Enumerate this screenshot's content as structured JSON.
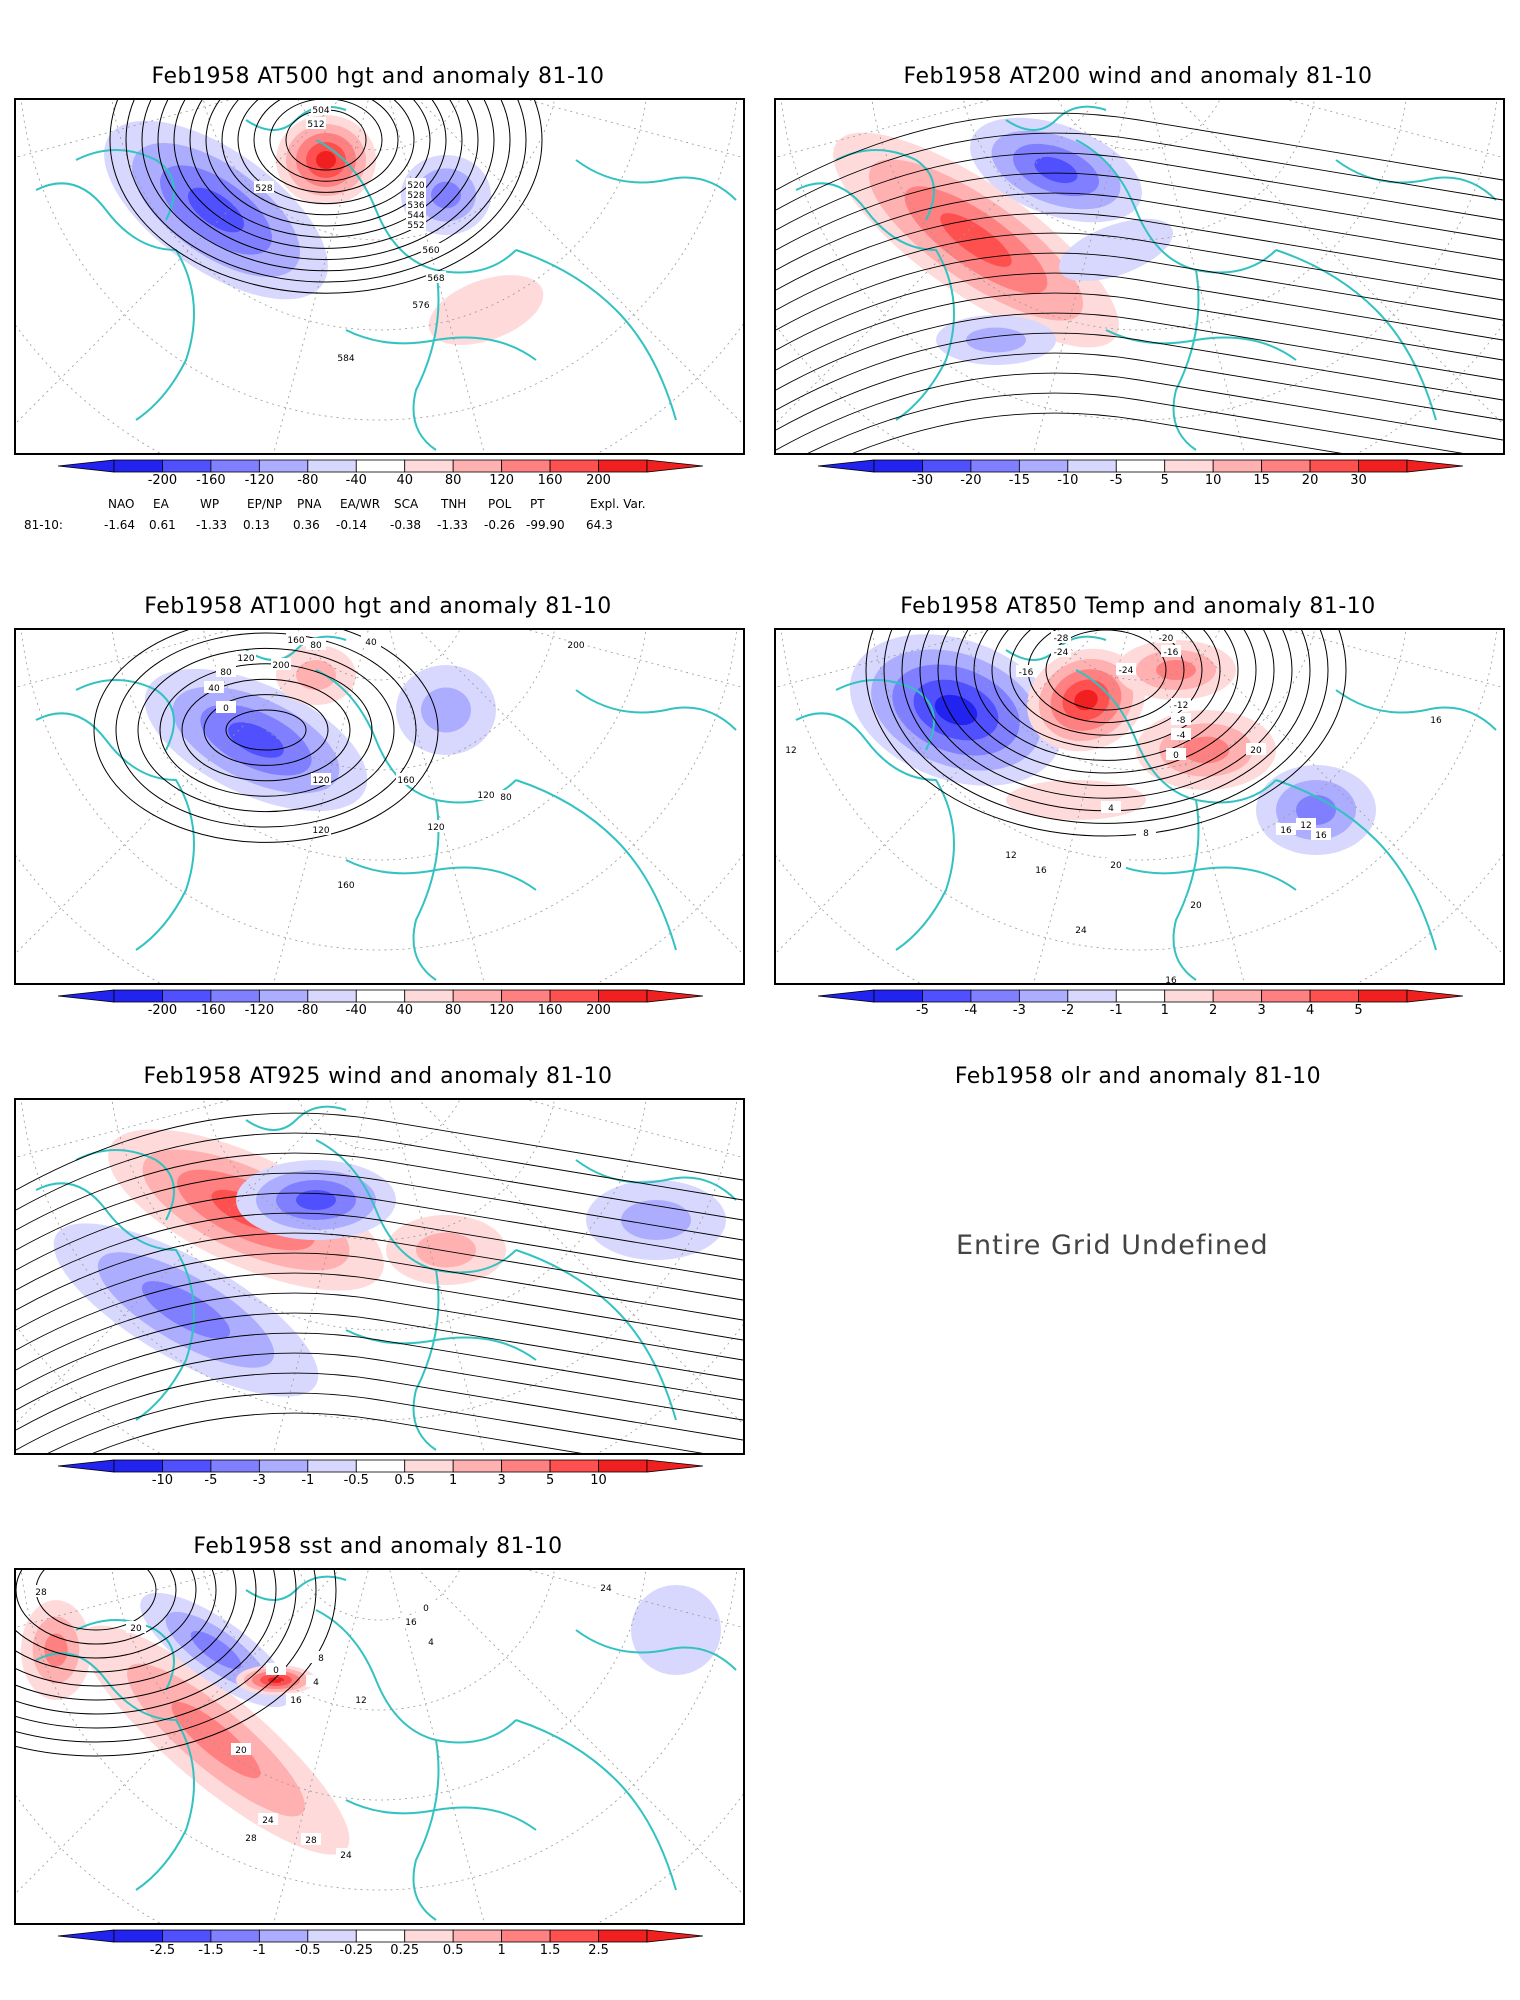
{
  "palette": {
    "blue5": "#2323f0",
    "blue4": "#5050ff",
    "blue3": "#7f7fff",
    "blue2": "#adadff",
    "blue1": "#d8d8ff",
    "red1": "#ffdada",
    "red2": "#ffb0b0",
    "red3": "#ff8080",
    "red4": "#ff5050",
    "red5": "#f02020",
    "land": "#33c2c2",
    "contour": "#000000"
  },
  "panels": [
    {
      "title": "Feb1958 AT500 hgt and anomaly 81-10",
      "colorbar": [
        "-200",
        "-160",
        "-120",
        "-80",
        "-40",
        "40",
        "80",
        "120",
        "160",
        "200"
      ],
      "contour_labels": [
        "504",
        "512",
        "520",
        "528",
        "536",
        "544",
        "552",
        "560",
        "568",
        "576",
        "584",
        "528"
      ],
      "teleconnections": {
        "headers": [
          "NAO",
          "EA",
          "WP",
          "EP/NP",
          "PNA",
          "EA/WR",
          "SCA",
          "TNH",
          "POL",
          "PT",
          "Expl. Var."
        ],
        "row_label": "81-10:",
        "values": [
          "-1.64",
          "0.61",
          "-1.33",
          "0.13",
          "0.36",
          "-0.14",
          "-0.38",
          "-1.33",
          "-0.26",
          "-99.90",
          "64.3"
        ]
      }
    },
    {
      "title": "Feb1958 AT200 wind and anomaly 81-10",
      "colorbar": [
        "-30",
        "-20",
        "-15",
        "-10",
        "-5",
        "5",
        "10",
        "15",
        "20",
        "30"
      ]
    },
    {
      "title": "Feb1958 AT1000 hgt and anomaly 81-10",
      "colorbar": [
        "-200",
        "-160",
        "-120",
        "-80",
        "-40",
        "40",
        "80",
        "120",
        "160",
        "200"
      ],
      "contour_labels": [
        "160",
        "120",
        "80",
        "40",
        "0",
        "200",
        "80",
        "40",
        "160",
        "120",
        "120",
        "160",
        "120",
        "80",
        "120",
        "200"
      ]
    },
    {
      "title": "Feb1958 AT850 Temp and anomaly 81-10",
      "colorbar": [
        "-5",
        "-4",
        "-3",
        "-2",
        "-1",
        "1",
        "2",
        "3",
        "4",
        "5"
      ],
      "contour_labels": [
        "-28",
        "-24",
        "-20",
        "-16",
        "-24",
        "-16",
        "-12",
        "-8",
        "-4",
        "0",
        "4",
        "8",
        "12",
        "16",
        "20",
        "24",
        "20",
        "16",
        "12",
        "16",
        "16",
        "20",
        "16",
        "12"
      ]
    },
    {
      "title": "Feb1958 AT925 wind and anomaly 81-10",
      "colorbar": [
        "-10",
        "-5",
        "-3",
        "-1",
        "-0.5",
        "0.5",
        "1",
        "3",
        "5",
        "10"
      ]
    },
    {
      "title": "Feb1958 olr and anomaly 81-10",
      "undefined_text": "Entire Grid Undefined"
    },
    {
      "title": "Feb1958 sst and anomaly 81-10",
      "colorbar": [
        "-2.5",
        "-1.5",
        "-1",
        "-0.5",
        "-0.25",
        "0.25",
        "0.5",
        "1",
        "1.5",
        "2.5"
      ],
      "contour_labels": [
        "28",
        "20",
        "0",
        "4",
        "8",
        "12",
        "16",
        "20",
        "24",
        "28",
        "28",
        "24",
        "16",
        "0",
        "4",
        "24"
      ]
    }
  ]
}
